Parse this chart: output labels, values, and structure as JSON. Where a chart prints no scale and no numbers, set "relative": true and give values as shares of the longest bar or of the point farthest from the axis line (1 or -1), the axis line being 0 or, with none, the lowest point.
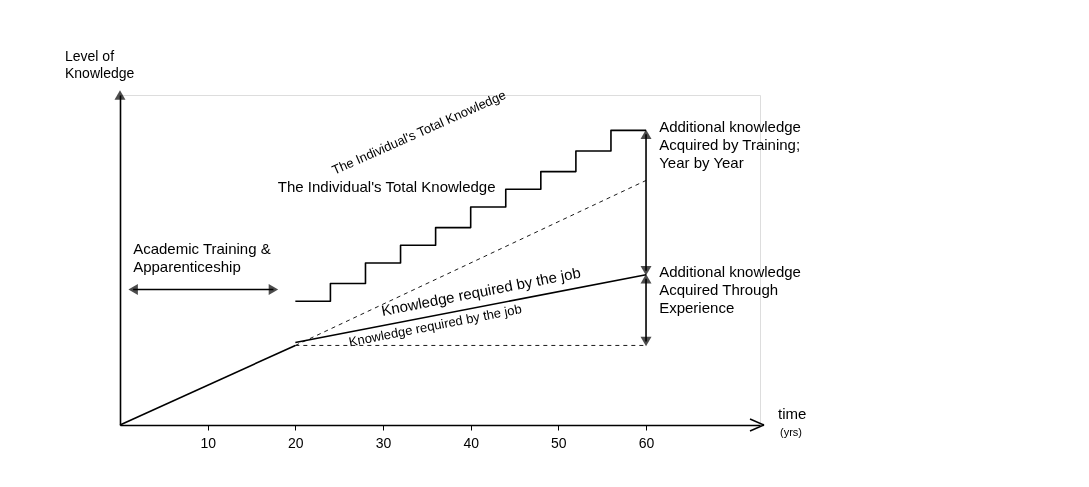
{
  "chart_data": {
    "type": "line",
    "relative": true,
    "xlabel": "time\n(yrs)",
    "ylabel": "Level of\nKnowledge",
    "xlim": [
      0,
      73
    ],
    "xticks": [
      10,
      20,
      30,
      40,
      50,
      60
    ],
    "grid": false,
    "series": [
      {
        "type": "line",
        "color": "#000000",
        "line_style": "solid",
        "x": [
          0,
          20
        ],
        "values": [
          0,
          0.27
        ]
      },
      {
        "name": "The Individual's Total Knowledge",
        "type": "step",
        "color": "#000000",
        "line_style": "solid",
        "x": [
          20,
          24,
          28,
          32,
          36,
          40,
          44,
          48,
          52,
          56,
          60
        ],
        "values": [
          0.42,
          0.48,
          0.55,
          0.61,
          0.67,
          0.74,
          0.8,
          0.86,
          0.93,
          1.0,
          1.0
        ]
      },
      {
        "name": "Knowledge required by the job",
        "type": "line",
        "color": "#000000",
        "line_style": "solid",
        "x": [
          20,
          60
        ],
        "values": [
          0.28,
          0.51
        ]
      },
      {
        "type": "line",
        "color": "#000000",
        "line_style": "dashed",
        "x": [
          20,
          60
        ],
        "values": [
          0.27,
          0.83
        ]
      },
      {
        "type": "line",
        "color": "#000000",
        "line_style": "dashed",
        "x": [
          20,
          60
        ],
        "values": [
          0.27,
          0.27
        ]
      }
    ],
    "annotations": [
      "Academic Training &\nApparenticeship",
      "Additional knowledge\nAcquired by Training;\nYear by Year",
      "Additional knowledge\nAcquired Through\nExperience",
      "The Individual's Total Knowledge",
      "Knowledge required by the job"
    ]
  }
}
